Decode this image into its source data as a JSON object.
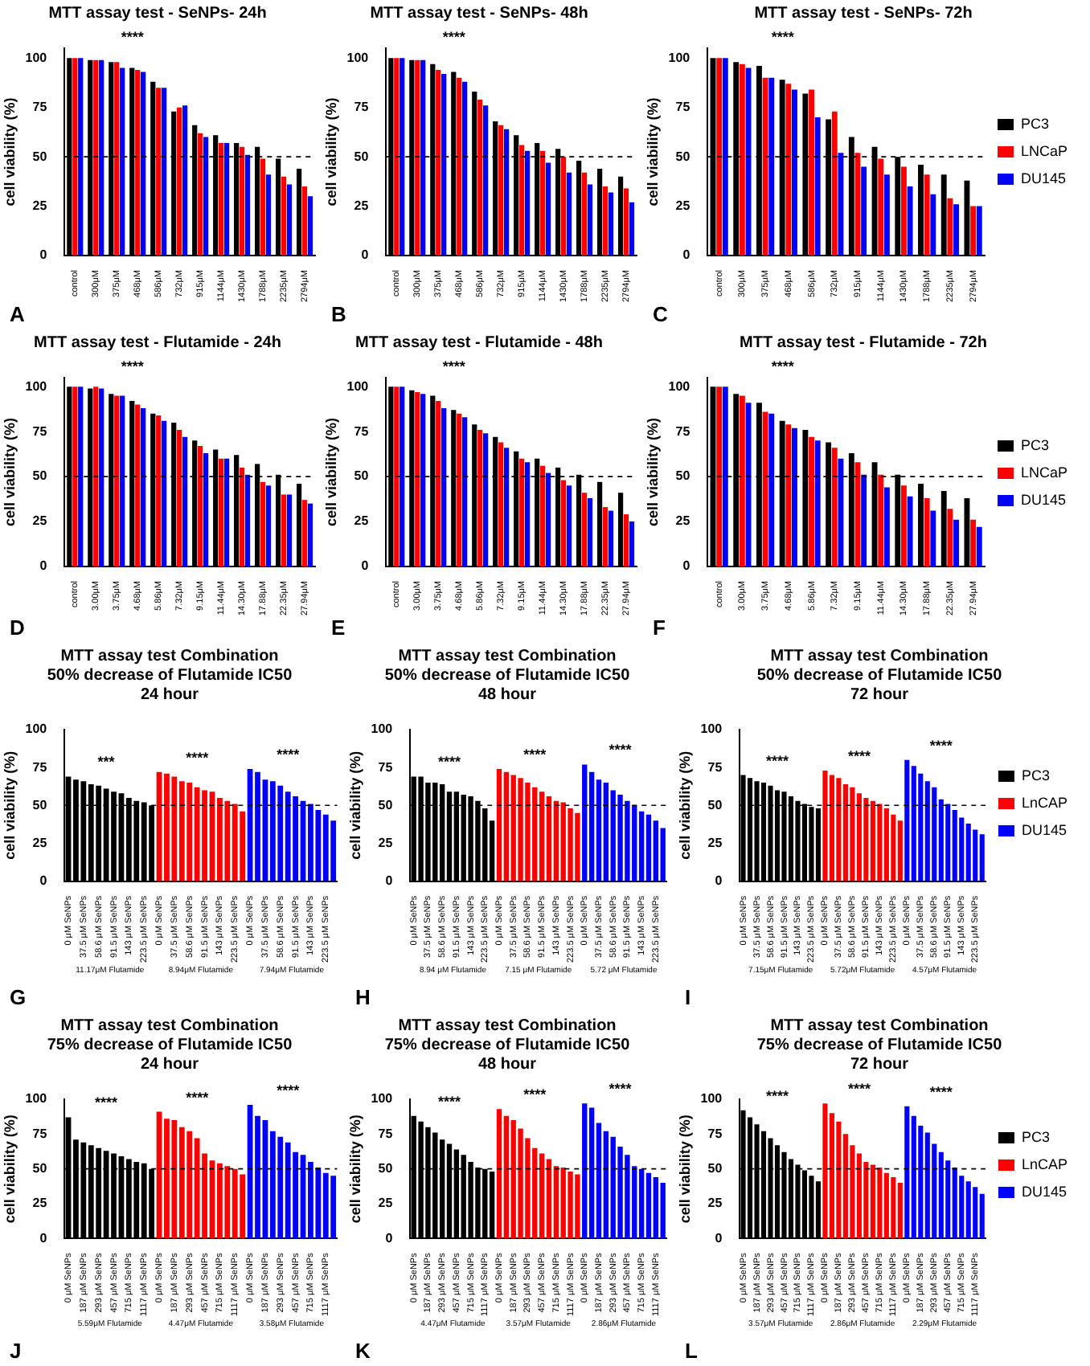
{
  "chart_data": [
    {
      "type": "bar",
      "title": "MTT assay test - SeNPs- 24h",
      "ylabel": "cell viability (%)",
      "categories": [
        "control",
        "300μM",
        "375μM",
        "468μM",
        "586μM",
        "732μM",
        "915μM",
        "1144μM",
        "1430μM",
        "1788μM",
        "2235μM",
        "2794μM"
      ],
      "series": [
        {
          "color": "#000000",
          "values": [
            100,
            99,
            98,
            95,
            88,
            73,
            66,
            61,
            57,
            55,
            49,
            44
          ]
        },
        {
          "color": "#ff0000",
          "values": [
            100,
            99,
            98,
            94,
            85,
            75,
            62,
            57,
            55,
            49,
            40,
            35
          ]
        },
        {
          "color": "#0000ff",
          "values": [
            100,
            99,
            95,
            93,
            85,
            76,
            60,
            57,
            51,
            41,
            36,
            30
          ]
        }
      ],
      "ylim": [
        0,
        105
      ],
      "yticks": [
        0,
        25,
        50,
        75,
        100
      ],
      "ref_lines": [
        {
          "axis": "y",
          "value": 50,
          "line_style": "dashed",
          "color": "#000000"
        }
      ],
      "annotations": [
        "****",
        "A"
      ]
    },
    {
      "type": "bar",
      "title": "MTT assay test - SeNPs- 48h",
      "ylabel": "cell viability (%)",
      "categories": [
        "control",
        "300μM",
        "375μM",
        "468μM",
        "586μM",
        "732μM",
        "915μM",
        "1144μM",
        "1430μM",
        "1788μM",
        "2235μM",
        "2794μM"
      ],
      "series": [
        {
          "color": "#000000",
          "values": [
            100,
            99,
            97,
            93,
            83,
            68,
            61,
            57,
            54,
            48,
            44,
            40
          ]
        },
        {
          "color": "#ff0000",
          "values": [
            100,
            99,
            94,
            90,
            79,
            66,
            56,
            53,
            50,
            42,
            35,
            34
          ]
        },
        {
          "color": "#0000ff",
          "values": [
            100,
            99,
            92,
            88,
            76,
            64,
            53,
            47,
            42,
            36,
            32,
            27
          ]
        }
      ],
      "ylim": [
        0,
        105
      ],
      "yticks": [
        0,
        25,
        50,
        75,
        100
      ],
      "ref_lines": [
        {
          "axis": "y",
          "value": 50,
          "line_style": "dashed",
          "color": "#000000"
        }
      ],
      "annotations": [
        "****",
        "B"
      ]
    },
    {
      "type": "bar",
      "title": "MTT assay test - SeNPs- 72h",
      "ylabel": "cell viability (%)",
      "categories": [
        "control",
        "300μM",
        "375μM",
        "468μM",
        "586μM",
        "732μM",
        "915μM",
        "1144μM",
        "1430μM",
        "1788μM",
        "2235μM",
        "2794μM"
      ],
      "series": [
        {
          "name": "PC3",
          "color": "#000000",
          "values": [
            100,
            98,
            96,
            89,
            82,
            69,
            60,
            55,
            50,
            46,
            41,
            38
          ]
        },
        {
          "name": "LNCaP",
          "color": "#ff0000",
          "values": [
            100,
            97,
            90,
            87,
            84,
            73,
            52,
            49,
            45,
            41,
            29,
            25
          ]
        },
        {
          "name": "DU145",
          "color": "#0000ff",
          "values": [
            100,
            95,
            90,
            84,
            70,
            52,
            45,
            41,
            35,
            31,
            26,
            25
          ]
        }
      ],
      "ylim": [
        0,
        105
      ],
      "yticks": [
        0,
        25,
        50,
        75,
        100
      ],
      "legend": "right",
      "ref_lines": [
        {
          "axis": "y",
          "value": 50,
          "line_style": "dashed",
          "color": "#000000"
        }
      ],
      "annotations": [
        "****",
        "C"
      ]
    },
    {
      "type": "bar",
      "title": "MTT assay test - Flutamide - 24h",
      "ylabel": "cell viability (%)",
      "categories": [
        "control",
        "3.00μM",
        "3.75μM",
        "4.68μM",
        "5.86μM",
        "7.32μM",
        "9.15μM",
        "11.44μM",
        "14.30μM",
        "17.88μM",
        "22.35μM",
        "27.94μM"
      ],
      "series": [
        {
          "color": "#000000",
          "values": [
            100,
            99,
            96,
            92,
            85,
            80,
            70,
            65,
            62,
            57,
            51,
            46
          ]
        },
        {
          "color": "#ff0000",
          "values": [
            100,
            100,
            95,
            90,
            84,
            76,
            67,
            60,
            55,
            47,
            40,
            37
          ]
        },
        {
          "color": "#0000ff",
          "values": [
            100,
            99,
            95,
            88,
            81,
            72,
            63,
            60,
            51,
            45,
            40,
            35
          ]
        }
      ],
      "ylim": [
        0,
        105
      ],
      "yticks": [
        0,
        25,
        50,
        75,
        100
      ],
      "ref_lines": [
        {
          "axis": "y",
          "value": 50,
          "line_style": "dashed",
          "color": "#000000"
        }
      ],
      "annotations": [
        "****",
        "D"
      ]
    },
    {
      "type": "bar",
      "title": "MTT assay test - Flutamide - 48h",
      "ylabel": "cell viability (%)",
      "categories": [
        "control",
        "3.00μM",
        "3.75μM",
        "4.68μM",
        "5.86μM",
        "7.32μM",
        "9.15μM",
        "11.44μM",
        "14.30μM",
        "17.88μM",
        "22.35μM",
        "27.94μM"
      ],
      "series": [
        {
          "color": "#000000",
          "values": [
            100,
            98,
            95,
            87,
            79,
            72,
            64,
            60,
            55,
            51,
            47,
            41
          ]
        },
        {
          "color": "#ff0000",
          "values": [
            100,
            97,
            92,
            85,
            76,
            69,
            60,
            56,
            48,
            41,
            33,
            29
          ]
        },
        {
          "color": "#0000ff",
          "values": [
            100,
            96,
            88,
            83,
            74,
            66,
            58,
            52,
            45,
            38,
            31,
            25
          ]
        }
      ],
      "ylim": [
        0,
        105
      ],
      "yticks": [
        0,
        25,
        50,
        75,
        100
      ],
      "ref_lines": [
        {
          "axis": "y",
          "value": 50,
          "line_style": "dashed",
          "color": "#000000"
        }
      ],
      "annotations": [
        "****",
        "E"
      ]
    },
    {
      "type": "bar",
      "title": "MTT assay test - Flutamide - 72h",
      "ylabel": "cell viability (%)",
      "categories": [
        "control",
        "3.00μM",
        "3.75μM",
        "4.68μM",
        "5.86μM",
        "7.32μM",
        "9.15μM",
        "11.44μM",
        "14.30μM",
        "17.88μM",
        "22.35μM",
        "27.94μM"
      ],
      "series": [
        {
          "name": "PC3",
          "color": "#000000",
          "values": [
            100,
            96,
            91,
            81,
            76,
            69,
            63,
            58,
            51,
            46,
            42,
            38
          ]
        },
        {
          "name": "LNCaP",
          "color": "#ff0000",
          "values": [
            100,
            95,
            86,
            79,
            72,
            66,
            58,
            51,
            45,
            38,
            32,
            26
          ]
        },
        {
          "name": "DU145",
          "color": "#0000ff",
          "values": [
            100,
            91,
            85,
            77,
            70,
            60,
            51,
            44,
            39,
            31,
            26,
            22
          ]
        }
      ],
      "ylim": [
        0,
        105
      ],
      "yticks": [
        0,
        25,
        50,
        75,
        100
      ],
      "legend": "right",
      "ref_lines": [
        {
          "axis": "y",
          "value": 50,
          "line_style": "dashed",
          "color": "#000000"
        }
      ],
      "annotations": [
        "****",
        "F"
      ]
    },
    {
      "type": "bar",
      "title": "MTT assay test Combination\n50% decrease of Flutamide IC50\n24 hour",
      "ylabel": "cell viability (%)",
      "categories": [
        "0 μM SeNPs",
        null,
        "37.5 μM SeNPs",
        null,
        "58.6 μM SeNPs",
        null,
        "91.5 μM SeNPs",
        null,
        "143 μM SeNPs",
        null,
        "223.5 μM SeNPs",
        null,
        "0 μM SeNPs",
        null,
        "37.5 μM SeNPs",
        null,
        "58.6 μM SeNPs",
        null,
        "91.5 μM SeNPs",
        null,
        "143 μM SeNPs",
        null,
        "223.5 μM SeNPs",
        null,
        "0 μM SeNPs",
        null,
        "37.5 μM SeNPs",
        null,
        "58.6 μM SeNPs",
        null,
        "91.5 μM SeNPs",
        null,
        "143 μM SeNPs",
        null,
        "223.5 μM SeNPs",
        null
      ],
      "series": [
        {
          "color": "#000000",
          "values": [
            69,
            67,
            66,
            64,
            63,
            61,
            59,
            58,
            55,
            53,
            52,
            50,
            null,
            null,
            null,
            null,
            null,
            null,
            null,
            null,
            null,
            null,
            null,
            null,
            null,
            null,
            null,
            null,
            null,
            null,
            null,
            null,
            null,
            null,
            null,
            null
          ]
        },
        {
          "color": "#ff0000",
          "values": [
            null,
            null,
            null,
            null,
            null,
            null,
            null,
            null,
            null,
            null,
            null,
            null,
            72,
            71,
            69,
            66,
            65,
            62,
            60,
            59,
            55,
            53,
            51,
            46,
            null,
            null,
            null,
            null,
            null,
            null,
            null,
            null,
            null,
            null,
            null,
            null
          ]
        },
        {
          "color": "#0000ff",
          "values": [
            null,
            null,
            null,
            null,
            null,
            null,
            null,
            null,
            null,
            null,
            null,
            null,
            null,
            null,
            null,
            null,
            null,
            null,
            null,
            null,
            null,
            null,
            null,
            null,
            74,
            72,
            67,
            66,
            63,
            59,
            56,
            53,
            51,
            47,
            44,
            40
          ]
        }
      ],
      "ylim": [
        0,
        100
      ],
      "yticks": [
        0,
        25,
        50,
        75,
        100
      ],
      "ref_lines": [
        {
          "axis": "y",
          "value": 50,
          "line_style": "dashed",
          "color": "#000000"
        }
      ],
      "annotations": [
        "***",
        "****",
        "****",
        "11.17μM Flutamide",
        "8.94μM Flutamide",
        "7.94μM Flutamide",
        "G"
      ]
    },
    {
      "type": "bar",
      "title": "MTT assay test Combination\n50% decrease of Flutamide IC50\n48 hour",
      "ylabel": "cell viability (%)",
      "categories": [
        "0 μM SeNPs",
        null,
        "37.5 μM SeNPs",
        null,
        "58.6 μM SeNPs",
        null,
        "91.5 μM SeNPs",
        null,
        "143 μM SeNPs",
        null,
        "223.5 μM SeNPs",
        null,
        "0 μM SeNPs",
        null,
        "37.5 μM SeNPs",
        null,
        "58.6 μM SeNPs",
        null,
        "91.5 μM SeNPs",
        null,
        "143 μM SeNPs",
        null,
        "223.5 μM SeNPs",
        null,
        "0 μM SeNPs",
        null,
        "37.5 μM SeNPs",
        null,
        "58.6 μM SeNPs",
        null,
        "91.5 μM SeNPs",
        null,
        "143 μM SeNPs",
        null,
        "223.5 μM SeNPs",
        null
      ],
      "series": [
        {
          "color": "#000000",
          "values": [
            69,
            69,
            65,
            65,
            64,
            59,
            59,
            57,
            56,
            53,
            48,
            40,
            null,
            null,
            null,
            null,
            null,
            null,
            null,
            null,
            null,
            null,
            null,
            null,
            null,
            null,
            null,
            null,
            null,
            null,
            null,
            null,
            null,
            null,
            null,
            null
          ]
        },
        {
          "color": "#ff0000",
          "values": [
            null,
            null,
            null,
            null,
            null,
            null,
            null,
            null,
            null,
            null,
            null,
            null,
            74,
            72,
            70,
            68,
            65,
            62,
            59,
            56,
            53,
            52,
            48,
            45,
            null,
            null,
            null,
            null,
            null,
            null,
            null,
            null,
            null,
            null,
            null,
            null
          ]
        },
        {
          "color": "#0000ff",
          "values": [
            null,
            null,
            null,
            null,
            null,
            null,
            null,
            null,
            null,
            null,
            null,
            null,
            null,
            null,
            null,
            null,
            null,
            null,
            null,
            null,
            null,
            null,
            null,
            null,
            77,
            72,
            67,
            65,
            60,
            57,
            53,
            50,
            46,
            44,
            40,
            35
          ]
        }
      ],
      "ylim": [
        0,
        100
      ],
      "yticks": [
        0,
        25,
        50,
        75,
        100
      ],
      "ref_lines": [
        {
          "axis": "y",
          "value": 50,
          "line_style": "dashed",
          "color": "#000000"
        }
      ],
      "annotations": [
        "****",
        "****",
        "****",
        "8.94 μM Flutamide",
        "7.15 μM Flutamide",
        "5.72 μM Flutamide",
        "H"
      ]
    },
    {
      "type": "bar",
      "title": "MTT assay test Combination\n50% decrease of Flutamide IC50\n72 hour",
      "ylabel": "cell viability (%)",
      "categories": [
        "0 μM SeNPs",
        null,
        "37.5 μM SeNPs",
        null,
        "58.6 μM SeNPs",
        null,
        "91.5 μM SeNPs",
        null,
        "143 μM SeNPs",
        null,
        "223.5 μM SeNPs",
        null,
        "0 μM SeNPs",
        null,
        "37.5 μM SeNPs",
        null,
        "58.6 μM SeNPs",
        null,
        "91.5 μM SeNPs",
        null,
        "143 μM SeNPs",
        null,
        "223.5 μM SeNPs",
        null,
        "0 μM SeNPs",
        null,
        "37.5 μM SeNPs",
        null,
        "58.6 μM SeNPs",
        null,
        "91.5 μM SeNPs",
        null,
        "143 μM SeNPs",
        null,
        "223.5 μM SeNPs",
        null
      ],
      "series": [
        {
          "name": "PC3",
          "color": "#000000",
          "values": [
            70,
            68,
            66,
            65,
            63,
            60,
            59,
            56,
            53,
            51,
            49,
            48,
            null,
            null,
            null,
            null,
            null,
            null,
            null,
            null,
            null,
            null,
            null,
            null,
            null,
            null,
            null,
            null,
            null,
            null,
            null,
            null,
            null,
            null,
            null,
            null
          ]
        },
        {
          "name": "LnCAP",
          "color": "#ff0000",
          "values": [
            null,
            null,
            null,
            null,
            null,
            null,
            null,
            null,
            null,
            null,
            null,
            null,
            73,
            70,
            68,
            64,
            62,
            58,
            55,
            53,
            51,
            48,
            44,
            40,
            null,
            null,
            null,
            null,
            null,
            null,
            null,
            null,
            null,
            null,
            null,
            null
          ]
        },
        {
          "name": "DU145",
          "color": "#0000ff",
          "values": [
            null,
            null,
            null,
            null,
            null,
            null,
            null,
            null,
            null,
            null,
            null,
            null,
            null,
            null,
            null,
            null,
            null,
            null,
            null,
            null,
            null,
            null,
            null,
            null,
            80,
            76,
            71,
            66,
            62,
            54,
            51,
            47,
            42,
            38,
            34,
            31
          ]
        }
      ],
      "ylim": [
        0,
        100
      ],
      "yticks": [
        0,
        25,
        50,
        75,
        100
      ],
      "legend": "right",
      "ref_lines": [
        {
          "axis": "y",
          "value": 50,
          "line_style": "dashed",
          "color": "#000000"
        }
      ],
      "annotations": [
        "****",
        "****",
        "****",
        "7.15μM Flutamide",
        "5.72μM Flutamide",
        "4.57μM Flutamide",
        "I"
      ]
    },
    {
      "type": "bar",
      "title": "MTT assay test Combination\n75% decrease of Flutamide IC50\n24 hour",
      "ylabel": "cell viability (%)",
      "categories": [
        "0 μM SeNPs",
        null,
        "187 μM SeNPs",
        null,
        "293 μM SeNPs",
        null,
        "457 μM SeNPs",
        null,
        "715 μM SeNPs",
        null,
        "1117 μM SeNPs",
        null,
        "0 μM SeNPs",
        null,
        "187 μM SeNPs",
        null,
        "293 μM SeNPs",
        null,
        "457 μM SeNPs",
        null,
        "715 μM SeNPs",
        null,
        "1117 μM SeNPs",
        null,
        "0 μM SeNPs",
        null,
        "187 μM SeNPs",
        null,
        "293 μM SeNPs",
        null,
        "457 μM SeNPs",
        null,
        "715 μM SeNPs",
        null,
        "1117 μM SeNPs",
        null
      ],
      "series": [
        {
          "color": "#000000",
          "values": [
            87,
            71,
            69,
            67,
            65,
            63,
            61,
            59,
            57,
            55,
            54,
            50,
            null,
            null,
            null,
            null,
            null,
            null,
            null,
            null,
            null,
            null,
            null,
            null,
            null,
            null,
            null,
            null,
            null,
            null,
            null,
            null,
            null,
            null,
            null,
            null
          ]
        },
        {
          "color": "#ff0000",
          "values": [
            null,
            null,
            null,
            null,
            null,
            null,
            null,
            null,
            null,
            null,
            null,
            null,
            91,
            86,
            85,
            80,
            77,
            72,
            61,
            56,
            54,
            52,
            50,
            46,
            null,
            null,
            null,
            null,
            null,
            null,
            null,
            null,
            null,
            null,
            null,
            null
          ]
        },
        {
          "color": "#0000ff",
          "values": [
            null,
            null,
            null,
            null,
            null,
            null,
            null,
            null,
            null,
            null,
            null,
            null,
            null,
            null,
            null,
            null,
            null,
            null,
            null,
            null,
            null,
            null,
            null,
            null,
            96,
            88,
            85,
            77,
            73,
            69,
            62,
            60,
            55,
            51,
            47,
            45
          ]
        }
      ],
      "ylim": [
        0,
        100
      ],
      "yticks": [
        0,
        25,
        50,
        75,
        100
      ],
      "ref_lines": [
        {
          "axis": "y",
          "value": 50,
          "line_style": "dashed",
          "color": "#000000"
        }
      ],
      "annotations": [
        "****",
        "****",
        "****",
        "5.59μM Flutamide",
        "4.47μM Flutamide",
        "3.58μM Flutamide",
        "J"
      ]
    },
    {
      "type": "bar",
      "title": "MTT assay test Combination\n75% decrease of Flutamide IC50\n48 hour",
      "ylabel": "cell viability (%)",
      "categories": [
        "0 μM SeNPs",
        null,
        "187 μM SeNPs",
        null,
        "293 μM SeNPs",
        null,
        "457 μM SeNPs",
        null,
        "715 μM SeNPs",
        null,
        "1117 μM SeNPs",
        null,
        "0 μM SeNPs",
        null,
        "187 μM SeNPs",
        null,
        "293 μM SeNPs",
        null,
        "457 μM SeNPs",
        null,
        "715 μM SeNPs",
        null,
        "1117 μM SeNPs",
        null,
        "0 μM SeNPs",
        null,
        "187 μM SeNPs",
        null,
        "293 μM SeNPs",
        null,
        "457 μM SeNPs",
        null,
        "715 μM SeNPs",
        null,
        "1117 μM SeNPs",
        null
      ],
      "series": [
        {
          "color": "#000000",
          "values": [
            88,
            84,
            80,
            76,
            71,
            68,
            64,
            60,
            55,
            51,
            50,
            48,
            null,
            null,
            null,
            null,
            null,
            null,
            null,
            null,
            null,
            null,
            null,
            null,
            null,
            null,
            null,
            null,
            null,
            null,
            null,
            null,
            null,
            null,
            null,
            null
          ]
        },
        {
          "color": "#ff0000",
          "values": [
            null,
            null,
            null,
            null,
            null,
            null,
            null,
            null,
            null,
            null,
            null,
            null,
            93,
            88,
            85,
            79,
            72,
            65,
            61,
            57,
            52,
            51,
            48,
            46,
            null,
            null,
            null,
            null,
            null,
            null,
            null,
            null,
            null,
            null,
            null,
            null
          ]
        },
        {
          "color": "#0000ff",
          "values": [
            null,
            null,
            null,
            null,
            null,
            null,
            null,
            null,
            null,
            null,
            null,
            null,
            null,
            null,
            null,
            null,
            null,
            null,
            null,
            null,
            null,
            null,
            null,
            null,
            97,
            94,
            83,
            77,
            73,
            66,
            60,
            52,
            50,
            47,
            44,
            40
          ]
        }
      ],
      "ylim": [
        0,
        100
      ],
      "yticks": [
        0,
        25,
        50,
        75,
        100
      ],
      "ref_lines": [
        {
          "axis": "y",
          "value": 50,
          "line_style": "dashed",
          "color": "#000000"
        }
      ],
      "annotations": [
        "****",
        "****",
        "****",
        "4.47μM Flutamide",
        "3.57μM Flutamide",
        "2.86μM Flutamide",
        "K"
      ]
    },
    {
      "type": "bar",
      "title": "MTT assay test Combination\n75% decrease of Flutamide IC50\n72 hour",
      "ylabel": "cell viability (%)",
      "categories": [
        "0 μM SeNPs",
        null,
        "187 μM SeNPs",
        null,
        "293 μM SeNPs",
        null,
        "457 μM SeNPs",
        null,
        "715 μM SeNPs",
        null,
        "1117 μM SeNPs",
        null,
        "0 μM SeNPs",
        null,
        "187 μM SeNPs",
        null,
        "293 μM SeNPs",
        null,
        "457 μM SeNPs",
        null,
        "715 μM SeNPs",
        null,
        "1117 μM SeNPs",
        null,
        "0 μM SeNPs",
        null,
        "187 μM SeNPs",
        null,
        "293 μM SeNPs",
        null,
        "457 μM SeNPs",
        null,
        "715 μM SeNPs",
        null,
        "1117 μM SeNPs",
        null
      ],
      "series": [
        {
          "name": "PC3",
          "color": "#000000",
          "values": [
            92,
            87,
            82,
            77,
            72,
            67,
            62,
            57,
            53,
            49,
            45,
            41,
            null,
            null,
            null,
            null,
            null,
            null,
            null,
            null,
            null,
            null,
            null,
            null,
            null,
            null,
            null,
            null,
            null,
            null,
            null,
            null,
            null,
            null,
            null,
            null
          ]
        },
        {
          "name": "LnCAP",
          "color": "#ff0000",
          "values": [
            null,
            null,
            null,
            null,
            null,
            null,
            null,
            null,
            null,
            null,
            null,
            null,
            97,
            90,
            84,
            75,
            67,
            61,
            55,
            53,
            51,
            47,
            44,
            40,
            null,
            null,
            null,
            null,
            null,
            null,
            null,
            null,
            null,
            null,
            null,
            null
          ]
        },
        {
          "name": "DU145",
          "color": "#0000ff",
          "values": [
            null,
            null,
            null,
            null,
            null,
            null,
            null,
            null,
            null,
            null,
            null,
            null,
            null,
            null,
            null,
            null,
            null,
            null,
            null,
            null,
            null,
            null,
            null,
            null,
            95,
            88,
            81,
            76,
            68,
            62,
            56,
            51,
            45,
            41,
            37,
            32
          ]
        }
      ],
      "ylim": [
        0,
        100
      ],
      "yticks": [
        0,
        25,
        50,
        75,
        100
      ],
      "legend": "right",
      "ref_lines": [
        {
          "axis": "y",
          "value": 50,
          "line_style": "dashed",
          "color": "#000000"
        }
      ],
      "annotations": [
        "****",
        "****",
        "****",
        "3.57μM Flutamide",
        "2.86μM Flutamide",
        "2.29μM Flutamide",
        "L"
      ]
    }
  ]
}
